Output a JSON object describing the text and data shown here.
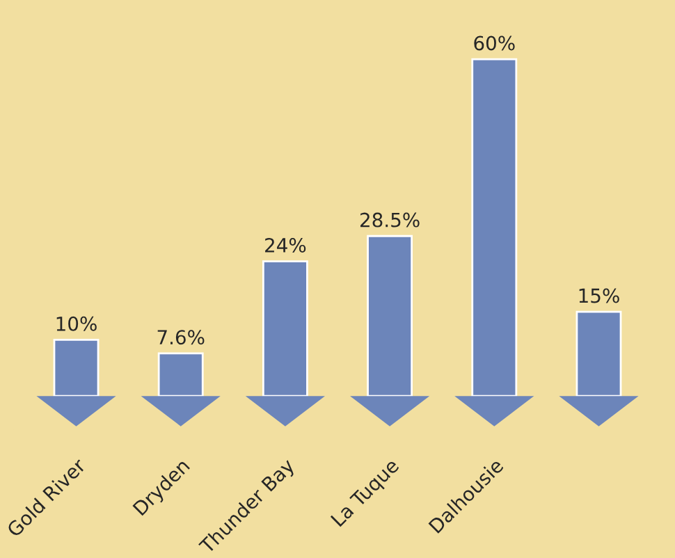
{
  "chart_data": {
    "type": "bar",
    "categories": [
      "Gold River",
      "Dryden",
      "Thunder Bay",
      "La Tuque",
      "Dalhousie",
      null
    ],
    "values": [
      10,
      7.6,
      24,
      28.5,
      60,
      15
    ],
    "value_labels": [
      "10%",
      "7.6%",
      "24%",
      "28.5%",
      "60%",
      "15%"
    ],
    "color": "#6c85ba"
  }
}
